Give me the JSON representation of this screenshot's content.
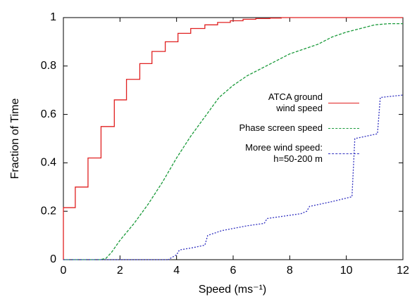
{
  "chart_data": {
    "type": "line",
    "x_label": "Speed (ms⁻¹)",
    "y_label": "Fraction of Time",
    "xlim": [
      0,
      12
    ],
    "ylim": [
      0,
      1
    ],
    "xticks": [
      0,
      2,
      4,
      6,
      8,
      10,
      12
    ],
    "yticks": [
      0,
      0.2,
      0.4,
      0.6,
      0.8,
      1
    ],
    "grid": false,
    "series": [
      {
        "name": "ATCA ground\nwind speed",
        "color": "#e02020",
        "dash": "solid",
        "step": "post",
        "x": [
          0,
          0,
          0.42,
          0.87,
          1.33,
          1.8,
          2.23,
          2.7,
          3.13,
          3.6,
          4.05,
          4.5,
          5.0,
          5.45,
          5.9,
          6.35,
          6.8,
          7.3,
          7.7,
          12
        ],
        "values": [
          0,
          0.215,
          0.3,
          0.42,
          0.55,
          0.66,
          0.745,
          0.81,
          0.86,
          0.9,
          0.935,
          0.955,
          0.97,
          0.98,
          0.987,
          0.993,
          0.996,
          0.998,
          1.0,
          1.0
        ]
      },
      {
        "name": "Phase screen speed",
        "color": "#1a9a3a",
        "dash": "4,2",
        "step": "none",
        "x": [
          0,
          1.3,
          1.5,
          1.7,
          2,
          2.5,
          3,
          3.5,
          4,
          4.5,
          5,
          5.5,
          6,
          6.5,
          7,
          7.5,
          8,
          8.5,
          9,
          9.5,
          10,
          10.5,
          11,
          11.5,
          12
        ],
        "values": [
          0,
          0,
          0.005,
          0.03,
          0.08,
          0.15,
          0.23,
          0.32,
          0.42,
          0.51,
          0.59,
          0.67,
          0.72,
          0.76,
          0.79,
          0.82,
          0.85,
          0.87,
          0.89,
          0.92,
          0.94,
          0.955,
          0.97,
          0.975,
          0.975
        ]
      },
      {
        "name": "Moree wind speed:\nh=50-200 m",
        "color": "#3030c0",
        "dash": "2,2",
        "step": "none",
        "x": [
          0,
          3.7,
          4.0,
          4.1,
          4.6,
          5.0,
          5.1,
          5.6,
          6.5,
          7.1,
          7.2,
          8.4,
          8.6,
          8.7,
          9.5,
          10.2,
          10.3,
          11.1,
          11.2,
          12
        ],
        "values": [
          0,
          0,
          0.02,
          0.04,
          0.05,
          0.06,
          0.1,
          0.12,
          0.14,
          0.15,
          0.17,
          0.19,
          0.2,
          0.22,
          0.24,
          0.26,
          0.5,
          0.52,
          0.67,
          0.68
        ]
      }
    ]
  }
}
